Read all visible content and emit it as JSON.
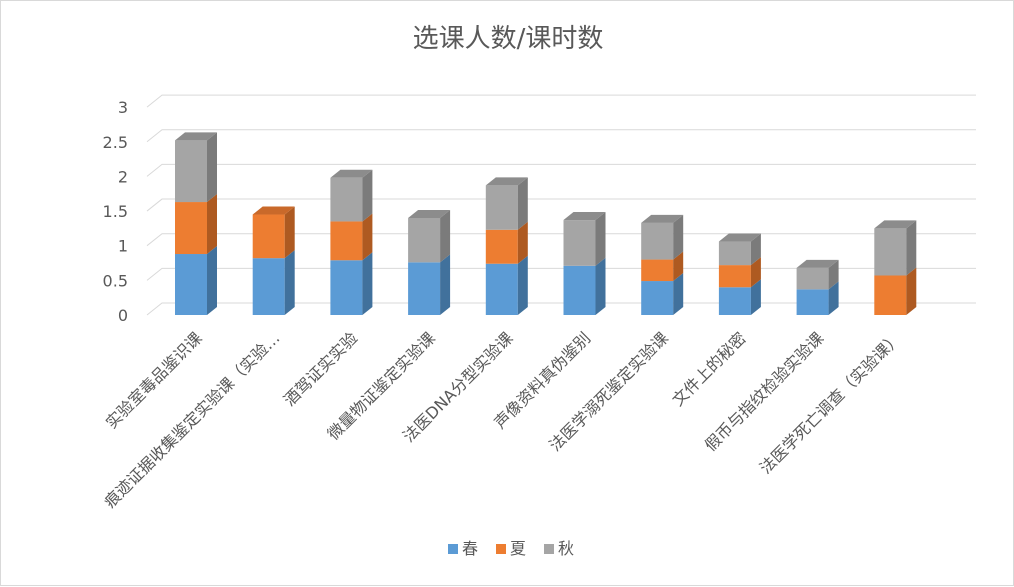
{
  "chart_data": {
    "type": "bar",
    "stacked": true,
    "three_d": true,
    "title": "选课人数/课时数",
    "xlabel": "",
    "ylabel": "",
    "ylim": [
      0,
      3
    ],
    "yticks": [
      "0",
      "0.5",
      "1",
      "1.5",
      "2",
      "2.5",
      "3"
    ],
    "grid": true,
    "legend_position": "bottom",
    "categories": [
      "实验室毒品鉴识课",
      "痕迹证据收集鉴定实验课（实验…",
      "酒驾证实实验",
      "微量物证鉴定实验课",
      "法医DNA分型实验课",
      "声像资料真伪鉴别",
      "法医学溺死鉴定实验课",
      "文件上的秘密",
      "假币与指纹检验实验课",
      "法医学死亡调查（实验课）"
    ],
    "series": [
      {
        "name": "春",
        "color": "#5b9bd5",
        "side": "#41719c",
        "top": "#4a7fb0",
        "values": [
          0.88,
          0.82,
          0.79,
          0.76,
          0.74,
          0.71,
          0.49,
          0.4,
          0.37,
          0
        ]
      },
      {
        "name": "夏",
        "color": "#ed7d31",
        "side": "#ae5a21",
        "top": "#c9692a",
        "values": [
          0.75,
          0.63,
          0.56,
          0,
          0.49,
          0,
          0.31,
          0.32,
          0,
          0.57
        ]
      },
      {
        "name": "秋",
        "color": "#a5a5a5",
        "side": "#7b7b7b",
        "top": "#8c8c8c",
        "values": [
          0.89,
          0,
          0.63,
          0.64,
          0.64,
          0.66,
          0.53,
          0.34,
          0.31,
          0.68
        ]
      }
    ]
  }
}
